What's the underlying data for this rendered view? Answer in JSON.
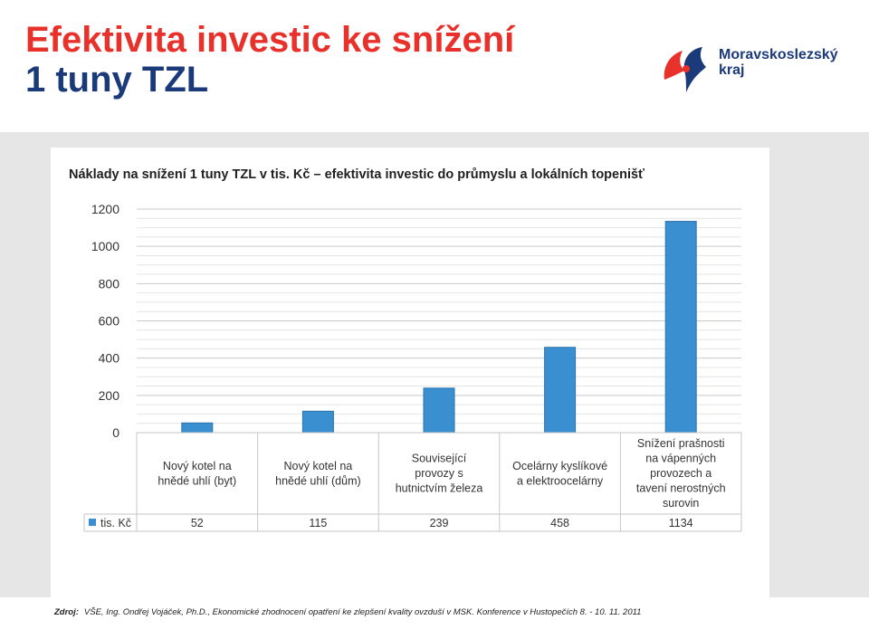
{
  "slide": {
    "title_line1": "Efektivita investic ke snížení",
    "title_line2": "1 tuny TZL"
  },
  "logo": {
    "line1": "Moravskoslezský",
    "line2": "kraj"
  },
  "colors": {
    "title_red": "#e8312a",
    "title_blue": "#1b3a7a",
    "bar_blue": "#3a8fd1",
    "logo_red": "#e8312a",
    "logo_blue": "#1b3a7a"
  },
  "chart_data": {
    "type": "bar",
    "title": "Náklady na snížení 1 tuny TZL v tis. Kč  – efektivita investic do průmyslu a lokálních topenišť",
    "categories": [
      [
        "Nový kotel na",
        "hnědé uhlí (byt)"
      ],
      [
        "Nový kotel na",
        "hnědé uhlí (dům)"
      ],
      [
        "Související",
        "provozy s",
        "hutnictvím železa"
      ],
      [
        "Ocelárny kyslíkové",
        "a elektroocelárny"
      ],
      [
        "Snížení prašnosti",
        "na vápenných",
        "provozech a",
        "tavení nerostných",
        "surovin"
      ]
    ],
    "series": [
      {
        "name": "tis. Kč",
        "values": [
          52,
          115,
          239,
          458,
          1134
        ]
      }
    ],
    "value_labels": [
      "52",
      "115",
      "239",
      "458",
      "1134"
    ],
    "yticks": [
      "0",
      "200",
      "400",
      "600",
      "800",
      "1000",
      "1200"
    ],
    "ylim": [
      0,
      1200
    ],
    "legend": "data-table",
    "grid": true
  },
  "source": {
    "label": "Zdroj:",
    "text": "VŠE, Ing. Ondřej Vojáček, Ph.D., Ekonomické zhodnocení opatření  ke zlepšení kvality ovzduší v MSK. Konference v Hustopečích 8. - 10. 11. 2011"
  }
}
